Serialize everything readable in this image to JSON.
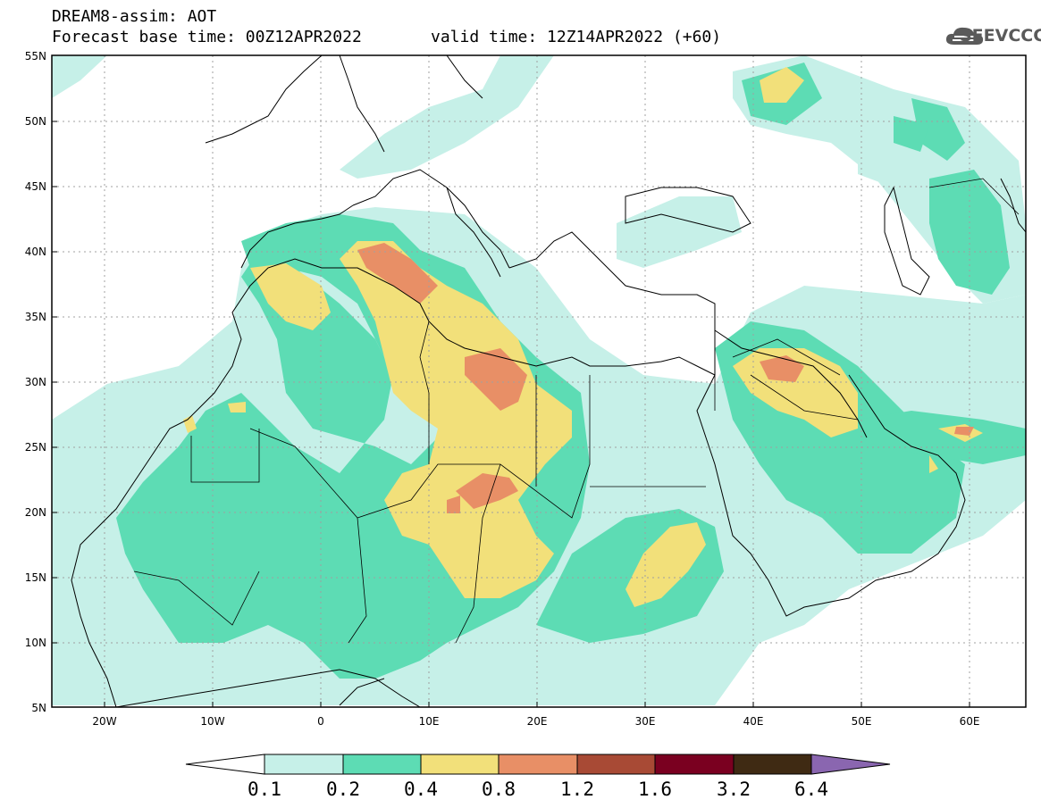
{
  "header": {
    "model_line": "DREAM8-assim: AOT",
    "base_time": "Forecast base time: 00Z12APR2022",
    "valid_time": "valid time: 12Z14APR2022 (+60)",
    "logo_text": "SEEVCCC"
  },
  "map": {
    "lat_labels": [
      "55N",
      "50N",
      "45N",
      "40N",
      "35N",
      "30N",
      "25N",
      "20N",
      "15N",
      "10N",
      "5N"
    ],
    "lon_labels": [
      "20W",
      "10W",
      "0",
      "10E",
      "20E",
      "30E",
      "40E",
      "50E",
      "60E"
    ],
    "grid": true,
    "colors": {
      "c01": "#c6f0e8",
      "c02": "#5ddcb4",
      "c04": "#f2e07a",
      "c08": "#e88f66",
      "c12": "#a84a35",
      "c16": "#7a0020",
      "c32": "#3f2a13",
      "c64": "#8a66b0"
    }
  },
  "colorbar": {
    "labels": [
      "0.1",
      "0.2",
      "0.4",
      "0.8",
      "1.2",
      "1.6",
      "3.2",
      "6.4"
    ]
  }
}
